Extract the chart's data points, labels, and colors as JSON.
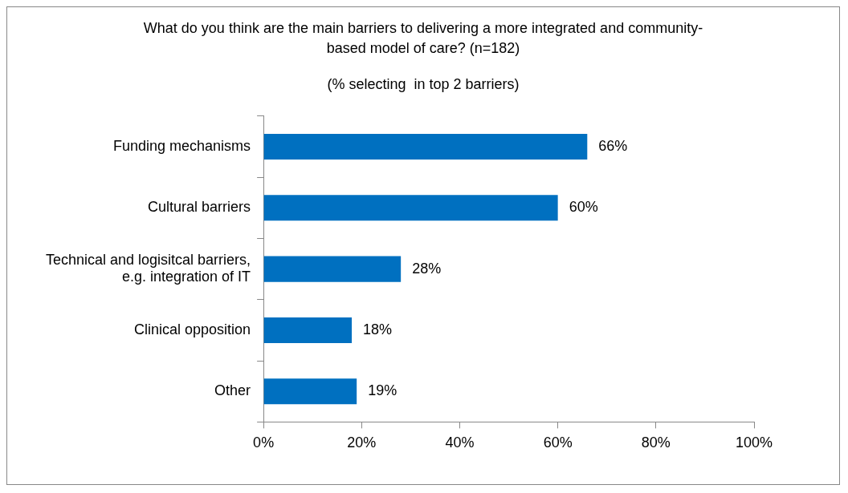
{
  "chart_data": {
    "type": "bar",
    "orientation": "horizontal",
    "title": "What do you think are the main barriers to delivering a more integrated and community-based model of care? (n=182)",
    "subtitle": "(% selecting  in top 2 barriers)",
    "categories": [
      "Funding mechanisms",
      "Cultural barriers",
      "Technical and logisitcal barriers, e.g. integration of IT",
      "Clinical opposition",
      "Other"
    ],
    "values": [
      66,
      60,
      28,
      18,
      19
    ],
    "value_labels": [
      "66%",
      "60%",
      "28%",
      "18%",
      "19%"
    ],
    "color": "#0070c0",
    "xlim": [
      0,
      100
    ],
    "xticks": [
      {
        "value": 0,
        "label": "0%"
      },
      {
        "value": 20,
        "label": "20%"
      },
      {
        "value": 40,
        "label": "40%"
      },
      {
        "value": 60,
        "label": "60%"
      },
      {
        "value": 80,
        "label": "80%"
      },
      {
        "value": 100,
        "label": "100%"
      }
    ],
    "grid": false,
    "legend": false
  }
}
